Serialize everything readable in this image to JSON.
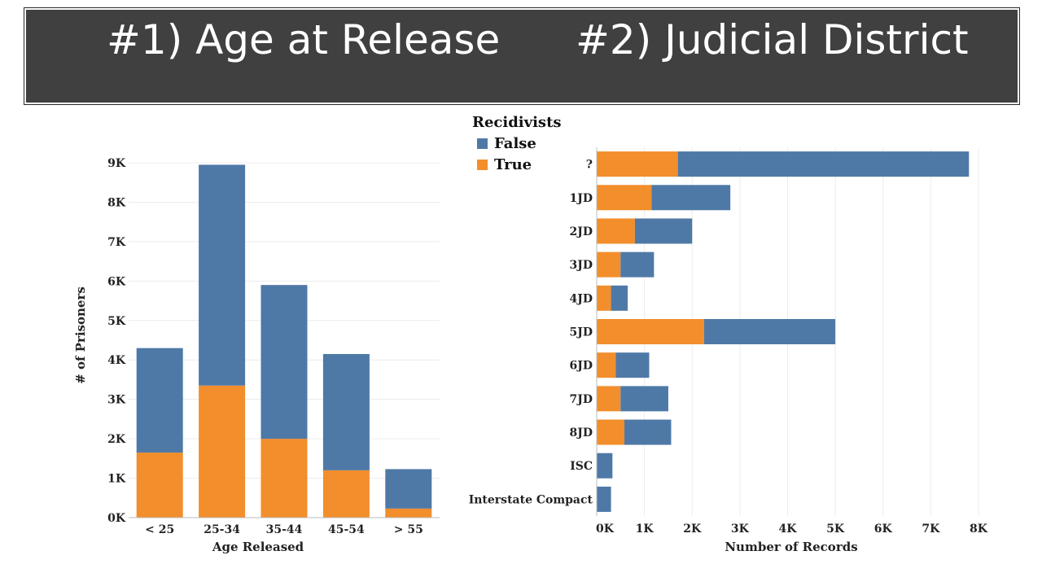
{
  "titles": {
    "left": "#1) Age at Release",
    "right": "#2) Judicial District"
  },
  "colors": {
    "false": "#4e79a7",
    "true": "#f28e2b",
    "banner": "#404040"
  },
  "legend": {
    "title": "Recidivists",
    "items": [
      {
        "label": "False",
        "color": "#4e79a7"
      },
      {
        "label": "True",
        "color": "#f28e2b"
      }
    ]
  },
  "chart_data": [
    {
      "type": "bar",
      "orientation": "vertical",
      "stacked": true,
      "title": "#1) Age at Release",
      "xlabel": "Age Released",
      "ylabel": "# of Prisoners",
      "ylim": [
        0,
        9000
      ],
      "yticks": [
        0,
        1000,
        2000,
        3000,
        4000,
        5000,
        6000,
        7000,
        8000,
        9000
      ],
      "ytick_labels": [
        "0K",
        "1K",
        "2K",
        "3K",
        "4K",
        "5K",
        "6K",
        "7K",
        "8K",
        "9K"
      ],
      "categories": [
        "< 25",
        "25-34",
        "35-44",
        "45-54",
        "> 55"
      ],
      "series": [
        {
          "name": "True",
          "values": [
            1650,
            3350,
            2000,
            1200,
            230
          ]
        },
        {
          "name": "False",
          "values": [
            2650,
            5600,
            3900,
            2950,
            1000
          ]
        }
      ]
    },
    {
      "type": "bar",
      "orientation": "horizontal",
      "stacked": true,
      "title": "#2) Judicial District",
      "xlabel": "Number of Records",
      "ylabel": "",
      "xlim": [
        0,
        8000
      ],
      "xticks": [
        0,
        1000,
        2000,
        3000,
        4000,
        5000,
        6000,
        7000,
        8000
      ],
      "xtick_labels": [
        "0K",
        "1K",
        "2K",
        "3K",
        "4K",
        "5K",
        "6K",
        "7K",
        "8K"
      ],
      "categories": [
        "?",
        "1JD",
        "2JD",
        "3JD",
        "4JD",
        "5JD",
        "6JD",
        "7JD",
        "8JD",
        "ISC",
        "Interstate Compact"
      ],
      "series": [
        {
          "name": "True",
          "values": [
            1700,
            1150,
            800,
            500,
            300,
            2250,
            400,
            500,
            580,
            0,
            0
          ]
        },
        {
          "name": "False",
          "values": [
            6100,
            1650,
            1200,
            700,
            350,
            2750,
            700,
            1000,
            980,
            330,
            300
          ]
        }
      ]
    }
  ]
}
